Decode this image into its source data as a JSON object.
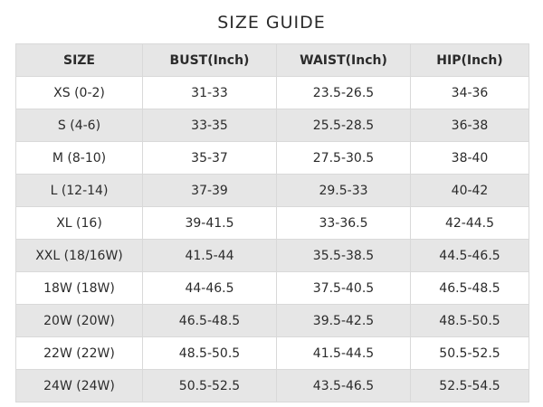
{
  "title": "SIZE GUIDE",
  "headers": [
    "SIZE",
    "BUST(Inch)",
    "WAIST(Inch)",
    "HIP(Inch)"
  ],
  "rows": [
    [
      "XS (0-2)",
      "31-33",
      "23.5-26.5",
      "34-36"
    ],
    [
      "S (4-6)",
      "33-35",
      "25.5-28.5",
      "36-38"
    ],
    [
      "M (8-10)",
      "35-37",
      "27.5-30.5",
      "38-40"
    ],
    [
      "L (12-14)",
      "37-39",
      "29.5-33",
      "40-42"
    ],
    [
      "XL (16)",
      "39-41.5",
      "33-36.5",
      "42-44.5"
    ],
    [
      "XXL (18/16W)",
      "41.5-44",
      "35.5-38.5",
      "44.5-46.5"
    ],
    [
      "18W (18W)",
      "44-46.5",
      "37.5-40.5",
      "46.5-48.5"
    ],
    [
      "20W (20W)",
      "46.5-48.5",
      "39.5-42.5",
      "48.5-50.5"
    ],
    [
      "22W (22W)",
      "48.5-50.5",
      "41.5-44.5",
      "50.5-52.5"
    ],
    [
      "24W (24W)",
      "50.5-52.5",
      "43.5-46.5",
      "52.5-54.5"
    ]
  ]
}
